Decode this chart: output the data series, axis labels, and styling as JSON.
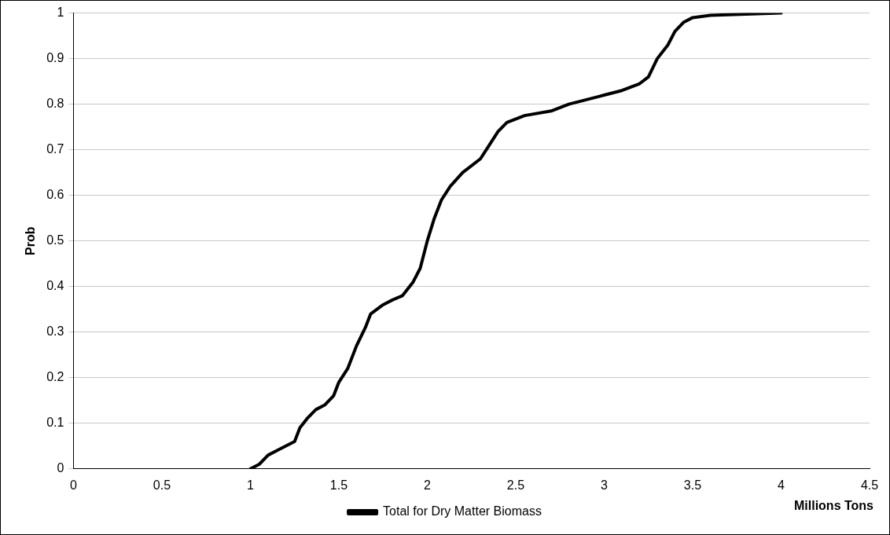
{
  "chart_data": {
    "type": "line",
    "xlabel": "Millions Tons",
    "ylabel": "Prob",
    "xlim": [
      0,
      4.5
    ],
    "xticks": [
      0,
      0.5,
      1,
      1.5,
      2,
      2.5,
      3,
      3.5,
      4,
      4.5
    ],
    "ylim": [
      0,
      1
    ],
    "yticks": [
      0,
      0.1,
      0.2,
      0.3,
      0.4,
      0.5,
      0.6,
      0.7,
      0.8,
      0.9,
      1
    ],
    "grid": "y",
    "legend": "bottom",
    "marker": "none",
    "line_style": "solid",
    "series": [
      {
        "name": "Total for Dry Matter Biomass",
        "color": "#000000",
        "x": [
          1.0,
          1.05,
          1.1,
          1.15,
          1.2,
          1.25,
          1.28,
          1.32,
          1.37,
          1.42,
          1.47,
          1.5,
          1.55,
          1.6,
          1.65,
          1.68,
          1.75,
          1.8,
          1.86,
          1.92,
          1.96,
          2.0,
          2.04,
          2.08,
          2.13,
          2.2,
          2.3,
          2.35,
          2.4,
          2.45,
          2.55,
          2.7,
          2.8,
          2.9,
          3.0,
          3.1,
          3.2,
          3.25,
          3.3,
          3.36,
          3.4,
          3.45,
          3.5,
          3.6,
          4.0
        ],
        "values": [
          0,
          0.01,
          0.03,
          0.04,
          0.05,
          0.06,
          0.09,
          0.11,
          0.13,
          0.14,
          0.16,
          0.19,
          0.22,
          0.27,
          0.31,
          0.34,
          0.36,
          0.37,
          0.38,
          0.41,
          0.44,
          0.5,
          0.55,
          0.59,
          0.62,
          0.65,
          0.68,
          0.71,
          0.74,
          0.76,
          0.775,
          0.785,
          0.8,
          0.81,
          0.82,
          0.83,
          0.845,
          0.86,
          0.9,
          0.93,
          0.96,
          0.98,
          0.99,
          0.995,
          1
        ]
      }
    ]
  }
}
